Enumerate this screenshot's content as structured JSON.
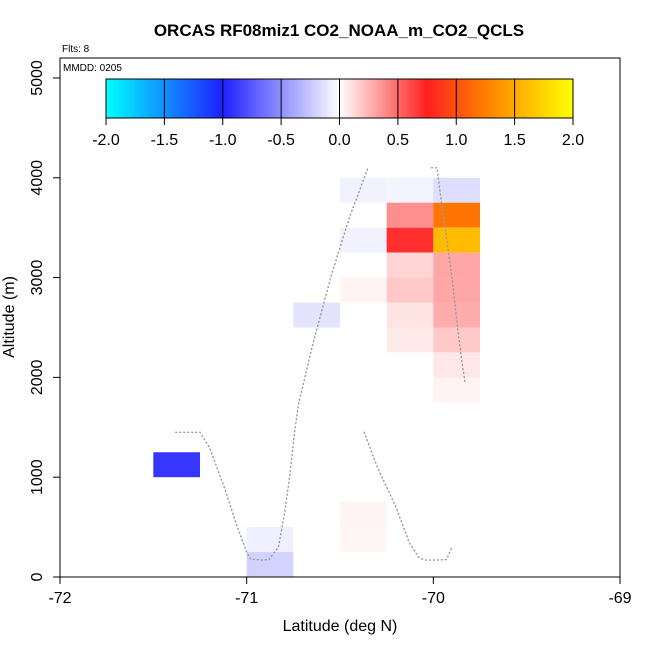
{
  "chart_data": {
    "type": "heatmap",
    "title": "ORCAS RF08miz1 CO2_NOAA_m_CO2_QCLS",
    "annotations": {
      "flights": "Flts: 8",
      "date": "MMDD: 0205"
    },
    "xlabel": "Latitude (deg N)",
    "ylabel": "Altitude (m)",
    "xlim": [
      -72,
      -69
    ],
    "ylim": [
      0,
      5200
    ],
    "x_ticks": [
      -72,
      -71,
      -70,
      -69
    ],
    "y_ticks": [
      0,
      1000,
      2000,
      3000,
      4000,
      5000
    ],
    "colorbar": {
      "range": [
        -2.0,
        2.0
      ],
      "ticks": [
        "-2.0",
        "-1.5",
        "-1.0",
        "-0.5",
        "0.0",
        "0.5",
        "1.0",
        "1.5",
        "2.0"
      ],
      "stops": [
        {
          "v": -2.0,
          "color": "#00ffff"
        },
        {
          "v": -1.0,
          "color": "#2020ff"
        },
        {
          "v": 0.0,
          "color": "#ffffff"
        },
        {
          "v": 0.75,
          "color": "#ff2020"
        },
        {
          "v": 1.25,
          "color": "#ff7f00"
        },
        {
          "v": 2.0,
          "color": "#ffff00"
        }
      ]
    },
    "cell_size": {
      "dlat": 0.25,
      "dalt": 250
    },
    "cells": [
      {
        "lat": -71.5,
        "alt": 1000,
        "value": -0.9
      },
      {
        "lat": -71.0,
        "alt": 250,
        "value": -0.07
      },
      {
        "lat": -71.0,
        "alt": 0,
        "value": -0.2
      },
      {
        "lat": -70.75,
        "alt": 2500,
        "value": -0.12
      },
      {
        "lat": -70.5,
        "alt": 3750,
        "value": -0.06
      },
      {
        "lat": -70.5,
        "alt": 3250,
        "value": -0.06
      },
      {
        "lat": -70.5,
        "alt": 2750,
        "value": 0.04
      },
      {
        "lat": -70.5,
        "alt": 500,
        "value": 0.04
      },
      {
        "lat": -70.5,
        "alt": 250,
        "value": 0.03
      },
      {
        "lat": -70.25,
        "alt": 3750,
        "value": -0.05
      },
      {
        "lat": -70.25,
        "alt": 3500,
        "value": 0.38
      },
      {
        "lat": -70.25,
        "alt": 3250,
        "value": 0.7
      },
      {
        "lat": -70.25,
        "alt": 3000,
        "value": 0.14
      },
      {
        "lat": -70.25,
        "alt": 2750,
        "value": 0.18
      },
      {
        "lat": -70.25,
        "alt": 2500,
        "value": 0.09
      },
      {
        "lat": -70.25,
        "alt": 2250,
        "value": 0.07
      },
      {
        "lat": -70.0,
        "alt": 3750,
        "value": -0.15
      },
      {
        "lat": -70.0,
        "alt": 3500,
        "value": 1.2
      },
      {
        "lat": -70.0,
        "alt": 3250,
        "value": 1.6
      },
      {
        "lat": -70.0,
        "alt": 3000,
        "value": 0.3
      },
      {
        "lat": -70.0,
        "alt": 2750,
        "value": 0.3
      },
      {
        "lat": -70.0,
        "alt": 2500,
        "value": 0.28
      },
      {
        "lat": -70.0,
        "alt": 2250,
        "value": 0.18
      },
      {
        "lat": -70.0,
        "alt": 2000,
        "value": 0.08
      },
      {
        "lat": -70.0,
        "alt": 1750,
        "value": 0.04
      }
    ],
    "flight_track": [
      [
        -71.38,
        1450
      ],
      [
        -71.25,
        1450
      ],
      [
        -71.2,
        1300
      ],
      [
        -71.12,
        900
      ],
      [
        -71.05,
        500
      ],
      [
        -71.0,
        250
      ],
      [
        -70.98,
        180
      ],
      [
        -70.92,
        170
      ],
      [
        -70.88,
        175
      ],
      [
        -70.83,
        300
      ],
      [
        -70.8,
        600
      ],
      [
        -70.77,
        1000
      ],
      [
        -70.74,
        1500
      ],
      [
        -70.72,
        1750
      ],
      [
        -70.65,
        2300
      ],
      [
        -70.55,
        3000
      ],
      [
        -70.45,
        3600
      ],
      [
        -70.38,
        3950
      ],
      [
        -70.35,
        4100
      ],
      null,
      [
        -70.37,
        1450
      ],
      [
        -70.3,
        1100
      ],
      [
        -70.2,
        700
      ],
      [
        -70.13,
        350
      ],
      [
        -70.08,
        200
      ],
      [
        -70.05,
        170
      ],
      [
        -69.98,
        170
      ],
      [
        -69.93,
        175
      ],
      [
        -69.9,
        300
      ],
      null,
      [
        -70.01,
        4100
      ],
      [
        -69.98,
        4100
      ],
      [
        -69.96,
        3800
      ],
      [
        -69.93,
        3400
      ],
      [
        -69.9,
        3000
      ],
      [
        -69.87,
        2500
      ],
      [
        -69.85,
        2200
      ],
      [
        -69.83,
        1950
      ]
    ]
  }
}
